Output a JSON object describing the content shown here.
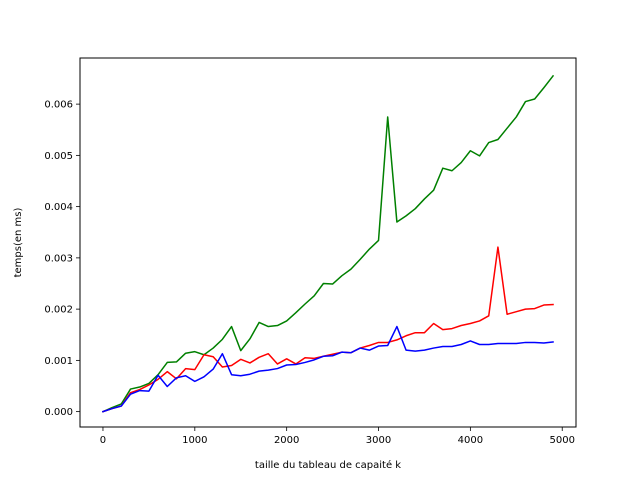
{
  "chart_data": {
    "type": "line",
    "title": "",
    "xlabel": "taille du tableau de capaité k",
    "ylabel": "temps(en ms)",
    "xlim": [
      -250,
      5150
    ],
    "ylim": [
      -0.0003,
      0.0069
    ],
    "x_ticks": [
      0,
      1000,
      2000,
      3000,
      4000,
      5000
    ],
    "x_tick_labels": [
      "0",
      "1000",
      "2000",
      "3000",
      "4000",
      "5000"
    ],
    "y_ticks": [
      0.0,
      0.001,
      0.002,
      0.003,
      0.004,
      0.005,
      0.006
    ],
    "y_tick_labels": [
      "0.000",
      "0.001",
      "0.002",
      "0.003",
      "0.004",
      "0.005",
      "0.006"
    ],
    "grid": false,
    "legend": false,
    "x": [
      0,
      100,
      200,
      300,
      400,
      500,
      600,
      700,
      800,
      900,
      1000,
      1100,
      1200,
      1300,
      1400,
      1500,
      1600,
      1700,
      1800,
      1900,
      2000,
      2100,
      2200,
      2300,
      2400,
      2500,
      2600,
      2700,
      2800,
      2900,
      3000,
      3100,
      3200,
      3300,
      3400,
      3500,
      3600,
      3700,
      3800,
      3900,
      4000,
      4100,
      4200,
      4300,
      4400,
      4500,
      4600,
      4700,
      4800,
      4900
    ],
    "series": [
      {
        "color": "#008000",
        "values": [
          0.0,
          8e-05,
          0.00015,
          0.00044,
          0.00048,
          0.00055,
          0.00072,
          0.00096,
          0.00097,
          0.00114,
          0.00117,
          0.00111,
          0.00124,
          0.00141,
          0.00166,
          0.00119,
          0.00142,
          0.00174,
          0.00166,
          0.00168,
          0.00177,
          0.00193,
          0.0021,
          0.00226,
          0.0025,
          0.00249,
          0.00265,
          0.00278,
          0.00297,
          0.00317,
          0.00334,
          0.00575,
          0.0037,
          0.00382,
          0.00396,
          0.00415,
          0.00432,
          0.00475,
          0.0047,
          0.00486,
          0.00509,
          0.00499,
          0.00525,
          0.00531,
          0.00553,
          0.00575,
          0.00605,
          0.0061,
          0.00632,
          0.00655
        ]
      },
      {
        "color": "#ff0000",
        "values": [
          0.0,
          6e-05,
          0.00011,
          0.00037,
          0.00043,
          0.00052,
          0.00063,
          0.00078,
          0.00064,
          0.00084,
          0.00082,
          0.00111,
          0.00107,
          0.00087,
          0.0009,
          0.00102,
          0.00095,
          0.00106,
          0.00113,
          0.00093,
          0.00103,
          0.00093,
          0.00105,
          0.00104,
          0.00108,
          0.00112,
          0.00116,
          0.00115,
          0.00124,
          0.00129,
          0.00135,
          0.00135,
          0.0014,
          0.00148,
          0.00154,
          0.00154,
          0.00172,
          0.0016,
          0.00162,
          0.00168,
          0.00172,
          0.00177,
          0.00187,
          0.00321,
          0.0019,
          0.00195,
          0.002,
          0.00201,
          0.00208,
          0.00209
        ]
      },
      {
        "color": "#0000ff",
        "values": [
          0.0,
          6e-05,
          0.00011,
          0.00034,
          0.00041,
          0.0004,
          0.00071,
          0.00049,
          0.00066,
          0.0007,
          0.00059,
          0.00068,
          0.00083,
          0.00113,
          0.00072,
          0.0007,
          0.00073,
          0.00079,
          0.00081,
          0.00084,
          0.00091,
          0.00092,
          0.00096,
          0.00101,
          0.00108,
          0.00109,
          0.00116,
          0.00115,
          0.00124,
          0.0012,
          0.00128,
          0.00129,
          0.00166,
          0.0012,
          0.00118,
          0.0012,
          0.00124,
          0.00127,
          0.00127,
          0.00131,
          0.00138,
          0.00131,
          0.00131,
          0.00133,
          0.00133,
          0.00133,
          0.00135,
          0.00135,
          0.00134,
          0.00136
        ]
      }
    ]
  }
}
